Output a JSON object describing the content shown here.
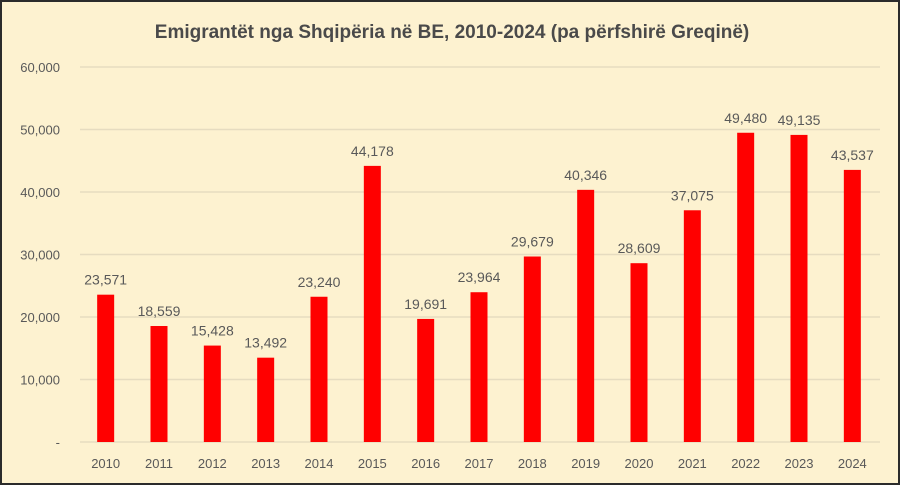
{
  "chart_data": {
    "type": "bar",
    "title": "Emigrantët nga Shqipëria në BE, 2010-2024 (pa përfshirë Greqinë)",
    "xlabel": "",
    "ylabel": "",
    "categories": [
      "2010",
      "2011",
      "2012",
      "2013",
      "2014",
      "2015",
      "2016",
      "2017",
      "2018",
      "2019",
      "2020",
      "2021",
      "2022",
      "2023",
      "2024"
    ],
    "values": [
      23571,
      18559,
      15428,
      13492,
      23240,
      44178,
      19691,
      23964,
      29679,
      40346,
      28609,
      37075,
      49480,
      49135,
      43537
    ],
    "data_labels": [
      "23,571",
      "18,559",
      "15,428",
      "13,492",
      "23,240",
      "44,178",
      "19,691",
      "23,964",
      "29,679",
      "40,346",
      "28,609",
      "37,075",
      "49,480",
      "49,135",
      "43,537"
    ],
    "ylim": [
      0,
      60000
    ],
    "yticks": [
      0,
      10000,
      20000,
      30000,
      40000,
      50000,
      60000
    ],
    "ytick_labels": [
      "-",
      "10,000",
      "20,000",
      "30,000",
      "40,000",
      "50,000",
      "60,000"
    ],
    "grid": true,
    "legend": "none",
    "colors": {
      "bar": "#ff0000",
      "background": "#fdf2d0",
      "grid": "#e6dcc0",
      "text": "#595959"
    }
  }
}
